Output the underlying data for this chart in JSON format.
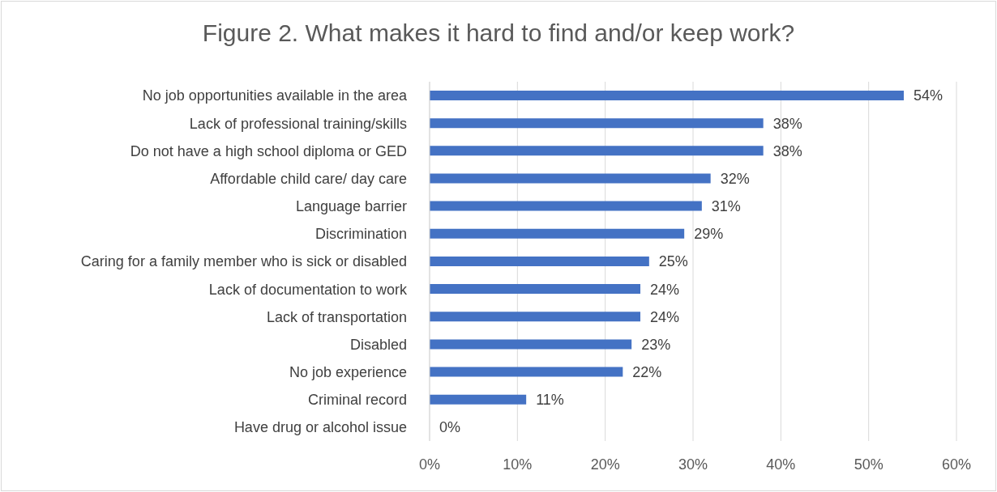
{
  "chart_data": {
    "type": "bar",
    "orientation": "horizontal",
    "title": "Figure 2. What makes it hard to find and/or keep work?",
    "categories": [
      "No job opportunities available in the area",
      "Lack of professional training/skills",
      "Do not have a high school diploma or GED",
      "Affordable child care/ day care",
      "Language barrier",
      "Discrimination",
      "Caring for a family member who is sick or disabled",
      "Lack of documentation to work",
      "Lack of transportation",
      "Disabled",
      "No job experience",
      "Criminal record",
      "Have drug or alcohol issue"
    ],
    "values": [
      54,
      38,
      38,
      32,
      31,
      29,
      25,
      24,
      24,
      23,
      22,
      11,
      0
    ],
    "value_labels": [
      "54%",
      "38%",
      "38%",
      "32%",
      "31%",
      "29%",
      "25%",
      "24%",
      "24%",
      "23%",
      "22%",
      "11%",
      "0%"
    ],
    "color": "#4472c4",
    "xlim": [
      0,
      60
    ],
    "xticks": [
      {
        "value": 0,
        "label": "0%"
      },
      {
        "value": 10,
        "label": "10%"
      },
      {
        "value": 20,
        "label": "20%"
      },
      {
        "value": 30,
        "label": "30%"
      },
      {
        "value": 40,
        "label": "40%"
      },
      {
        "value": 50,
        "label": "50%"
      },
      {
        "value": 60,
        "label": "60%"
      }
    ],
    "grid": "x",
    "legend": false
  }
}
